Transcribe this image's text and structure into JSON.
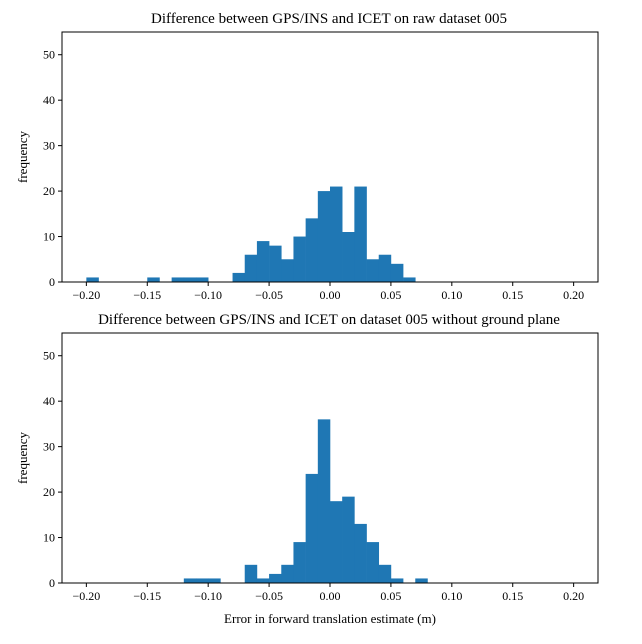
{
  "chart_data": [
    {
      "type": "bar",
      "title": "Difference between GPS/INS and ICET on raw dataset 005",
      "xlabel": "",
      "ylabel": "frequency",
      "xlim": [
        -0.22,
        0.22
      ],
      "ylim": [
        0,
        55
      ],
      "xticks": [
        -0.2,
        -0.15,
        -0.1,
        -0.05,
        0.0,
        0.05,
        0.1,
        0.15,
        0.2
      ],
      "xtick_labels": [
        "−0.20",
        "−0.15",
        "−0.10",
        "−0.05",
        "0.00",
        "0.05",
        "0.10",
        "0.15",
        "0.20"
      ],
      "yticks": [
        0,
        10,
        20,
        30,
        40,
        50
      ],
      "ytick_labels": [
        "0",
        "10",
        "20",
        "30",
        "40",
        "50"
      ],
      "grid": false,
      "color": "#1f77b4",
      "bin_edges": [
        -0.2,
        -0.19,
        -0.18,
        -0.17,
        -0.16,
        -0.15,
        -0.14,
        -0.13,
        -0.12,
        -0.11,
        -0.1,
        -0.09,
        -0.08,
        -0.07,
        -0.06,
        -0.05,
        -0.04,
        -0.03,
        -0.02,
        -0.01,
        0.0,
        0.01,
        0.02,
        0.03,
        0.04,
        0.05,
        0.06,
        0.07,
        0.08,
        0.09,
        0.1,
        0.11,
        0.12,
        0.13,
        0.14,
        0.15,
        0.16,
        0.17,
        0.18,
        0.19,
        0.2
      ],
      "counts": [
        1,
        0,
        0,
        0,
        0,
        1,
        0,
        1,
        1,
        1,
        0,
        0,
        2,
        6,
        9,
        8,
        5,
        10,
        14,
        20,
        21,
        11,
        21,
        5,
        6,
        4,
        1,
        0,
        0,
        0,
        0,
        0,
        0,
        0,
        0,
        0,
        0,
        0,
        0,
        0
      ]
    },
    {
      "type": "bar",
      "title": "Difference between GPS/INS and ICET on dataset 005 without ground plane",
      "xlabel": "Error in forward translation estimate (m)",
      "ylabel": "frequency",
      "xlim": [
        -0.22,
        0.22
      ],
      "ylim": [
        0,
        55
      ],
      "xticks": [
        -0.2,
        -0.15,
        -0.1,
        -0.05,
        0.0,
        0.05,
        0.1,
        0.15,
        0.2
      ],
      "xtick_labels": [
        "−0.20",
        "−0.15",
        "−0.10",
        "−0.05",
        "0.00",
        "0.05",
        "0.10",
        "0.15",
        "0.20"
      ],
      "yticks": [
        0,
        10,
        20,
        30,
        40,
        50
      ],
      "ytick_labels": [
        "0",
        "10",
        "20",
        "30",
        "40",
        "50"
      ],
      "grid": false,
      "color": "#1f77b4",
      "bin_edges": [
        -0.2,
        -0.19,
        -0.18,
        -0.17,
        -0.16,
        -0.15,
        -0.14,
        -0.13,
        -0.12,
        -0.11,
        -0.1,
        -0.09,
        -0.08,
        -0.07,
        -0.06,
        -0.05,
        -0.04,
        -0.03,
        -0.02,
        -0.01,
        0.0,
        0.01,
        0.02,
        0.03,
        0.04,
        0.05,
        0.06,
        0.07,
        0.08,
        0.09,
        0.1,
        0.11,
        0.12,
        0.13,
        0.14,
        0.15,
        0.16,
        0.17,
        0.18,
        0.19,
        0.2
      ],
      "counts": [
        0,
        0,
        0,
        0,
        0,
        0,
        0,
        0,
        1,
        1,
        1,
        0,
        0,
        4,
        1,
        2,
        4,
        9,
        24,
        36,
        18,
        19,
        13,
        9,
        4,
        1,
        0,
        1,
        0,
        0,
        0,
        0,
        0,
        0,
        0,
        0,
        0,
        0,
        0,
        0
      ]
    }
  ]
}
